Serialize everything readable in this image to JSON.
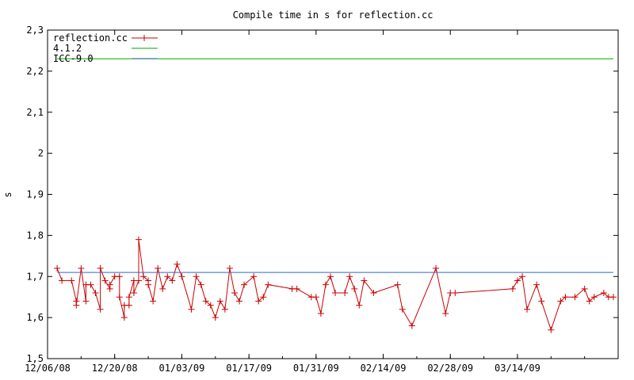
{
  "chart_data": {
    "type": "line",
    "title": "Compile time in s for reflection.cc",
    "xlabel": "",
    "ylabel": "s",
    "ylim": [
      1.5,
      2.3
    ],
    "xlim": [
      "2008-12-06",
      "2009-04-04"
    ],
    "y_ticks": [
      "1,5",
      "1,6",
      "1,7",
      "1,8",
      "1,9",
      "2",
      "2,1",
      "2,2",
      "2,3"
    ],
    "x_ticks": [
      {
        "date": "2008-12-06",
        "label": "12/06/08"
      },
      {
        "date": "2008-12-20",
        "label": "12/20/08"
      },
      {
        "date": "2009-01-03",
        "label": "01/03/09"
      },
      {
        "date": "2009-01-17",
        "label": "01/17/09"
      },
      {
        "date": "2009-01-31",
        "label": "01/31/09"
      },
      {
        "date": "2009-02-14",
        "label": "02/14/09"
      },
      {
        "date": "2009-02-28",
        "label": "02/28/09"
      },
      {
        "date": "2009-03-14",
        "label": "03/14/09"
      }
    ],
    "grid": false,
    "legend_position": "top-left",
    "series": [
      {
        "name": "reflection.cc",
        "color": "#cc0000",
        "style": "line-with-plus-markers",
        "x": [
          "2008-12-08",
          "2008-12-09",
          "2008-12-11",
          "2008-12-12",
          "2008-12-12",
          "2008-12-13",
          "2008-12-14",
          "2008-12-14",
          "2008-12-15",
          "2008-12-16",
          "2008-12-17",
          "2008-12-17",
          "2008-12-18",
          "2008-12-19",
          "2008-12-19",
          "2008-12-20",
          "2008-12-21",
          "2008-12-21",
          "2008-12-22",
          "2008-12-22",
          "2008-12-23",
          "2008-12-23",
          "2008-12-24",
          "2008-12-24",
          "2008-12-25",
          "2008-12-25",
          "2008-12-26",
          "2008-12-27",
          "2008-12-27",
          "2008-12-28",
          "2008-12-29",
          "2008-12-30",
          "2008-12-31",
          "2009-01-01",
          "2009-01-02",
          "2009-01-03",
          "2009-01-05",
          "2009-01-06",
          "2009-01-07",
          "2009-01-08",
          "2009-01-09",
          "2009-01-10",
          "2009-01-11",
          "2009-01-12",
          "2009-01-13",
          "2009-01-14",
          "2009-01-15",
          "2009-01-16",
          "2009-01-18",
          "2009-01-19",
          "2009-01-20",
          "2009-01-21",
          "2009-01-26",
          "2009-01-27",
          "2009-01-30",
          "2009-01-31",
          "2009-02-01",
          "2009-02-02",
          "2009-02-03",
          "2009-02-04",
          "2009-02-06",
          "2009-02-07",
          "2009-02-08",
          "2009-02-09",
          "2009-02-10",
          "2009-02-12",
          "2009-02-17",
          "2009-02-18",
          "2009-02-20",
          "2009-02-25",
          "2009-02-27",
          "2009-02-28",
          "2009-03-01",
          "2009-03-13",
          "2009-03-14",
          "2009-03-15",
          "2009-03-16",
          "2009-03-18",
          "2009-03-19",
          "2009-03-21",
          "2009-03-23",
          "2009-03-24",
          "2009-03-26",
          "2009-03-28",
          "2009-03-29",
          "2009-03-30",
          "2009-04-01",
          "2009-04-02",
          "2009-04-03"
        ],
        "values": [
          1.72,
          1.69,
          1.69,
          1.64,
          1.63,
          1.72,
          1.64,
          1.68,
          1.68,
          1.66,
          1.62,
          1.72,
          1.69,
          1.67,
          1.68,
          1.7,
          1.7,
          1.65,
          1.6,
          1.63,
          1.63,
          1.65,
          1.69,
          1.66,
          1.69,
          1.79,
          1.7,
          1.69,
          1.68,
          1.64,
          1.72,
          1.67,
          1.7,
          1.69,
          1.73,
          1.7,
          1.62,
          1.7,
          1.68,
          1.64,
          1.63,
          1.6,
          1.64,
          1.62,
          1.72,
          1.66,
          1.64,
          1.68,
          1.7,
          1.64,
          1.65,
          1.68,
          1.67,
          1.67,
          1.65,
          1.65,
          1.61,
          1.68,
          1.7,
          1.66,
          1.66,
          1.7,
          1.67,
          1.63,
          1.69,
          1.66,
          1.68,
          1.62,
          1.58,
          1.72,
          1.61,
          1.66,
          1.66,
          1.67,
          1.69,
          1.7,
          1.62,
          1.68,
          1.64,
          1.57,
          1.64,
          1.65,
          1.65,
          1.67,
          1.64,
          1.65,
          1.66,
          1.65,
          1.65
        ]
      },
      {
        "name": "4.1.2",
        "color": "#00aa00",
        "style": "line",
        "x": [
          "2008-12-08",
          "2009-04-03"
        ],
        "values": [
          2.23,
          2.23
        ]
      },
      {
        "name": "ICC-9.0",
        "color": "#3366cc",
        "style": "line",
        "x": [
          "2008-12-08",
          "2009-04-03"
        ],
        "values": [
          1.71,
          1.71
        ]
      }
    ]
  }
}
